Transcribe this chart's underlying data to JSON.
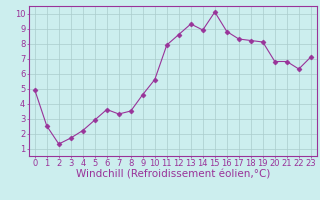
{
  "x": [
    0,
    1,
    2,
    3,
    4,
    5,
    6,
    7,
    8,
    9,
    10,
    11,
    12,
    13,
    14,
    15,
    16,
    17,
    18,
    19,
    20,
    21,
    22,
    23
  ],
  "y": [
    4.9,
    2.5,
    1.3,
    1.7,
    2.2,
    2.9,
    3.6,
    3.3,
    3.5,
    4.6,
    5.6,
    7.9,
    8.6,
    9.3,
    8.9,
    10.1,
    8.8,
    8.3,
    8.2,
    8.1,
    6.8,
    6.8,
    6.3,
    7.1
  ],
  "line_color": "#993399",
  "marker": "D",
  "marker_size": 2.5,
  "bg_color": "#cceeee",
  "grid_color": "#aacccc",
  "xlabel": "Windchill (Refroidissement éolien,°C)",
  "xlim": [
    -0.5,
    23.5
  ],
  "ylim": [
    0.5,
    10.5
  ],
  "yticks": [
    1,
    2,
    3,
    4,
    5,
    6,
    7,
    8,
    9,
    10
  ],
  "xticks": [
    0,
    1,
    2,
    3,
    4,
    5,
    6,
    7,
    8,
    9,
    10,
    11,
    12,
    13,
    14,
    15,
    16,
    17,
    18,
    19,
    20,
    21,
    22,
    23
  ],
  "label_color": "#993399",
  "tick_fontsize": 6.0,
  "xlabel_fontsize": 7.5
}
